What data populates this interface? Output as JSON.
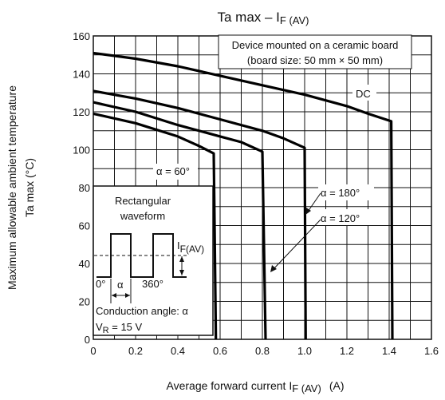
{
  "chart_data": {
    "type": "line",
    "title": {
      "main": "Ta max – I",
      "sub": "F (AV)"
    },
    "xlabel": {
      "main": "Average forward current   I",
      "sub": "F (AV)",
      "unit": "(A)"
    },
    "ylabel": {
      "line1": "Maximum allowable ambient temperature",
      "line2": "Ta max    (°C)"
    },
    "xlim": [
      0,
      1.6
    ],
    "ylim": [
      0,
      160
    ],
    "x_ticks": [
      0,
      0.2,
      0.4,
      0.6,
      0.8,
      1.0,
      1.2,
      1.4,
      1.6
    ],
    "x_tick_labels": [
      "0",
      "0.2",
      "0.4",
      "0.6",
      "0.8",
      "1.0",
      "1.2",
      "1.4",
      "1.6"
    ],
    "y_ticks": [
      0,
      20,
      40,
      60,
      80,
      100,
      120,
      140,
      160
    ],
    "y_tick_labels": [
      "0",
      "20",
      "40",
      "60",
      "80",
      "100",
      "120",
      "140",
      "160"
    ],
    "grid": true,
    "series": [
      {
        "name": "DC",
        "points": [
          [
            0,
            151
          ],
          [
            0.2,
            148
          ],
          [
            0.4,
            144
          ],
          [
            0.6,
            139
          ],
          [
            0.8,
            134
          ],
          [
            1.0,
            129
          ],
          [
            1.2,
            123
          ],
          [
            1.3,
            119
          ],
          [
            1.41,
            115
          ],
          [
            1.415,
            0
          ]
        ]
      },
      {
        "name": "α = 180°",
        "points": [
          [
            0,
            131
          ],
          [
            0.2,
            127
          ],
          [
            0.4,
            122
          ],
          [
            0.6,
            116
          ],
          [
            0.8,
            110
          ],
          [
            0.9,
            106
          ],
          [
            1.0,
            101
          ],
          [
            1.005,
            0
          ]
        ]
      },
      {
        "name": "α = 120°",
        "points": [
          [
            0,
            125
          ],
          [
            0.2,
            120
          ],
          [
            0.4,
            113
          ],
          [
            0.6,
            107
          ],
          [
            0.7,
            104
          ],
          [
            0.8,
            99
          ],
          [
            0.815,
            0
          ]
        ]
      },
      {
        "name": "α = 60°",
        "points": [
          [
            0,
            119
          ],
          [
            0.2,
            114
          ],
          [
            0.4,
            107
          ],
          [
            0.5,
            102
          ],
          [
            0.57,
            98
          ],
          [
            0.58,
            0
          ]
        ]
      }
    ],
    "annotations": {
      "device_line1": "Device mounted on a ceramic board",
      "device_line2": "(board size: 50 mm × 50 mm)",
      "inset_title1": "Rectangular",
      "inset_title2": "waveform",
      "inset_if_main": "I",
      "inset_if_sub": "F(AV)",
      "inset_0deg": "0°",
      "inset_alpha": "α",
      "inset_360deg": "360°",
      "conduction": "Conduction angle: α",
      "vr_main": "V",
      "vr_sub": "R",
      "vr_value": " = 15 V"
    }
  }
}
